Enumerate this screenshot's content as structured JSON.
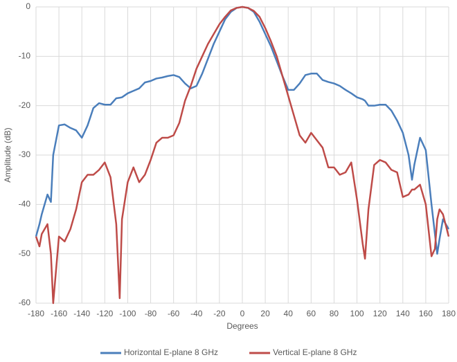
{
  "chart_data": {
    "type": "line",
    "x_label": "Degrees",
    "y_label": "Amplitude (dB)",
    "x": [
      -180,
      -177,
      -175,
      -170,
      -167,
      -165,
      -160,
      -155,
      -150,
      -145,
      -140,
      -135,
      -130,
      -125,
      -120,
      -115,
      -110,
      -107,
      -105,
      -100,
      -95,
      -90,
      -85,
      -80,
      -75,
      -70,
      -65,
      -60,
      -55,
      -50,
      -45,
      -40,
      -35,
      -30,
      -25,
      -20,
      -15,
      -10,
      -5,
      0,
      5,
      10,
      15,
      20,
      25,
      30,
      35,
      40,
      45,
      50,
      55,
      60,
      65,
      70,
      75,
      80,
      85,
      90,
      95,
      100,
      105,
      107,
      110,
      115,
      120,
      125,
      130,
      135,
      140,
      145,
      148,
      150,
      155,
      160,
      165,
      168,
      170,
      172,
      175,
      180
    ],
    "series": [
      {
        "name": "Horizontal E-plane 8 GHz",
        "color": "#4a7ebb",
        "values": [
          -46.5,
          -44,
          -42,
          -38,
          -39.5,
          -30,
          -24,
          -23.8,
          -24.5,
          -25,
          -26.5,
          -24,
          -20.5,
          -19.5,
          -19.8,
          -19.8,
          -18.5,
          -18.4,
          -18.3,
          -17.5,
          -17,
          -16.5,
          -15.3,
          -15,
          -14.5,
          -14.3,
          -14,
          -13.8,
          -14.2,
          -15.5,
          -16.5,
          -16,
          -13.5,
          -10.5,
          -7.5,
          -5,
          -2.5,
          -1,
          -0.2,
          0,
          -0.2,
          -1,
          -3,
          -5.5,
          -8,
          -11,
          -14,
          -16.8,
          -16.8,
          -15.5,
          -13.8,
          -13.5,
          -13.5,
          -14.8,
          -15.2,
          -15.5,
          -16,
          -16.8,
          -17.5,
          -18.3,
          -18.7,
          -19,
          -20,
          -20,
          -19.8,
          -19.8,
          -21,
          -23,
          -25.5,
          -30,
          -35,
          -32,
          -26.5,
          -29,
          -40,
          -46,
          -50,
          -47,
          -43,
          -45
        ]
      },
      {
        "name": "Vertical E-plane 8 GHz",
        "color": "#be4b48",
        "values": [
          -46.5,
          -48.5,
          -46,
          -44,
          -50,
          -60,
          -46.5,
          -47.5,
          -45,
          -41,
          -35.5,
          -34,
          -34,
          -33,
          -31.5,
          -34.5,
          -44,
          -59,
          -43,
          -35.5,
          -32.5,
          -35.5,
          -34,
          -31,
          -27.5,
          -26.5,
          -26.5,
          -26,
          -23.5,
          -19,
          -16,
          -12.5,
          -10,
          -7.5,
          -5.5,
          -3.5,
          -2,
          -0.7,
          -0.2,
          0,
          -0.2,
          -0.8,
          -2,
          -4.3,
          -7,
          -10,
          -14,
          -18,
          -22,
          -26,
          -27.5,
          -25.5,
          -27,
          -28.5,
          -32.5,
          -32.5,
          -34,
          -33.5,
          -31.5,
          -39,
          -48,
          -51,
          -41,
          -32,
          -31,
          -31.5,
          -33,
          -33.5,
          -38.5,
          -38,
          -37,
          -37,
          -36,
          -40,
          -50.5,
          -49,
          -43,
          -41,
          -42,
          -46.5
        ]
      }
    ],
    "xlim": [
      -180,
      180
    ],
    "xticks": [
      -180,
      -160,
      -140,
      -120,
      -100,
      -80,
      -60,
      -40,
      -20,
      0,
      20,
      40,
      60,
      80,
      100,
      120,
      140,
      160,
      180
    ],
    "ylim": [
      -60,
      0
    ],
    "yticks": [
      0,
      -10,
      -20,
      -30,
      -40,
      -50,
      -60
    ],
    "grid": true,
    "legend": "bottom"
  }
}
